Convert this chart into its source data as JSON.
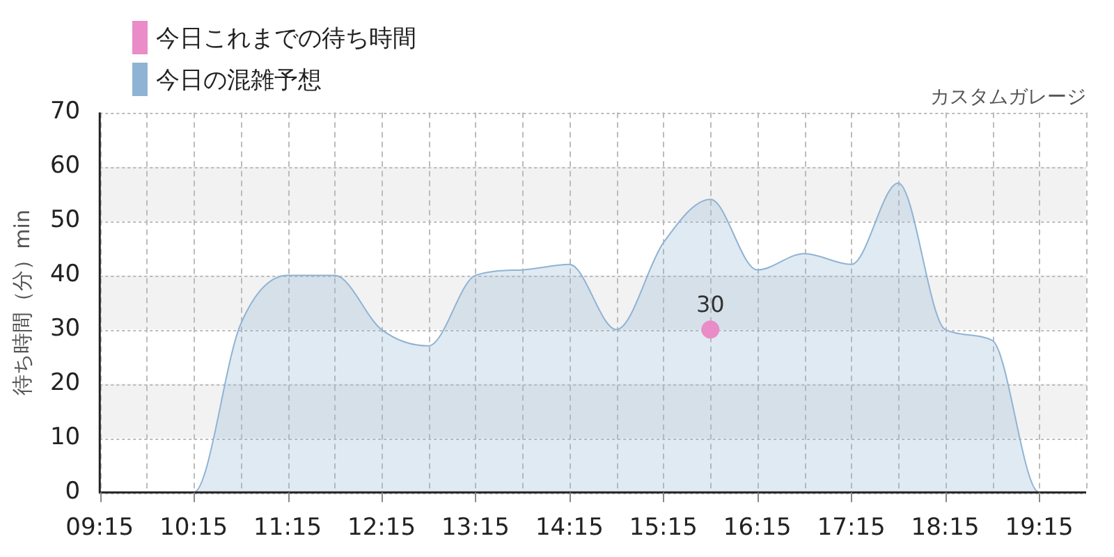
{
  "chart_data": {
    "type": "area",
    "subtitle": "カスタムガレージ",
    "ylabel": "待ち時間（分）min",
    "x": [
      9.25,
      9.75,
      10.25,
      10.75,
      11.25,
      11.75,
      12.25,
      12.75,
      13.25,
      13.75,
      14.25,
      14.75,
      15.25,
      15.75,
      16.25,
      16.75,
      17.25,
      17.75,
      18.25,
      18.75,
      19.25,
      19.75
    ],
    "series": [
      {
        "name": "今日これまでの待ち時間",
        "type": "scatter",
        "marker": "circle",
        "color": "#e98cc8",
        "x": [
          15.75
        ],
        "values": [
          30
        ],
        "value_labels": [
          "30"
        ]
      },
      {
        "name": "今日の混雑予想",
        "color": "#8fb3d3",
        "values": [
          0,
          0,
          0,
          31,
          40,
          40,
          30,
          27,
          40,
          41,
          42,
          30,
          46,
          54,
          41,
          44,
          42,
          57,
          30,
          28,
          0,
          0
        ]
      }
    ],
    "xlim": [
      9.25,
      19.75
    ],
    "xticks": [
      {
        "value": 9.25,
        "label": "09:15"
      },
      {
        "value": 9.75,
        "label": null
      },
      {
        "value": 10.25,
        "label": "10:15"
      },
      {
        "value": 10.75,
        "label": null
      },
      {
        "value": 11.25,
        "label": "11:15"
      },
      {
        "value": 11.75,
        "label": null
      },
      {
        "value": 12.25,
        "label": "12:15"
      },
      {
        "value": 12.75,
        "label": null
      },
      {
        "value": 13.25,
        "label": "13:15"
      },
      {
        "value": 13.75,
        "label": null
      },
      {
        "value": 14.25,
        "label": "14:15"
      },
      {
        "value": 14.75,
        "label": null
      },
      {
        "value": 15.25,
        "label": "15:15"
      },
      {
        "value": 15.75,
        "label": null
      },
      {
        "value": 16.25,
        "label": "16:15"
      },
      {
        "value": 16.75,
        "label": null
      },
      {
        "value": 17.25,
        "label": "17:15"
      },
      {
        "value": 17.75,
        "label": null
      },
      {
        "value": 18.25,
        "label": "18:15"
      },
      {
        "value": 18.75,
        "label": null
      },
      {
        "value": 19.25,
        "label": "19:15"
      },
      {
        "value": 19.75,
        "label": null
      }
    ],
    "ylim": [
      0,
      70
    ],
    "yticks": [
      0,
      10,
      20,
      30,
      40,
      50,
      60,
      70
    ],
    "bands": [
      {
        "axis": "y",
        "from": 10,
        "to": 20,
        "color": "#f2f2f2"
      },
      {
        "axis": "y",
        "from": 30,
        "to": 40,
        "color": "#f2f2f2"
      },
      {
        "axis": "y",
        "from": 50,
        "to": 60,
        "color": "#f2f2f2"
      }
    ],
    "grid": true,
    "legend": "top left"
  }
}
